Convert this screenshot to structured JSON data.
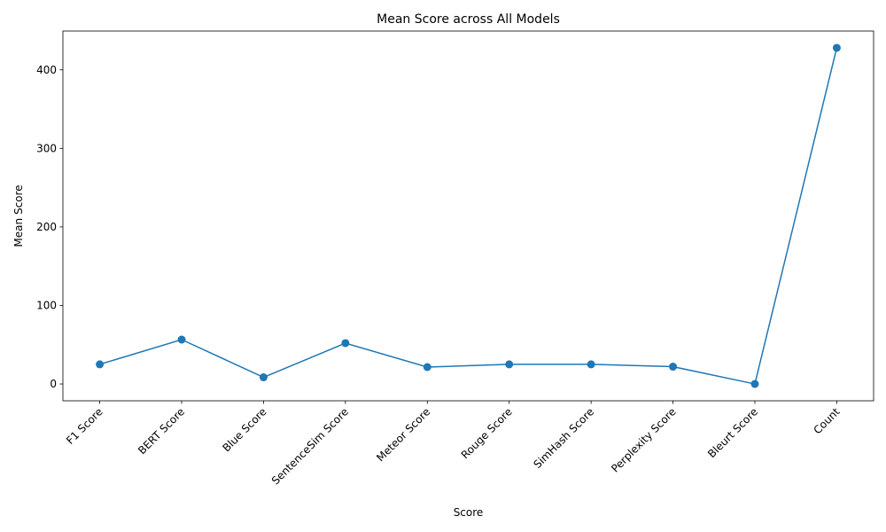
{
  "chart_data": {
    "type": "line",
    "title": "Mean Score across All Models",
    "xlabel": "Score",
    "ylabel": "Mean Score",
    "categories": [
      "F1 Score",
      "BERT Score",
      "Blue Score",
      "SentenceSim Score",
      "Meteor Score",
      "Rouge Score",
      "SimHash Score",
      "Perplexity Score",
      "Bleurt Score",
      "Count"
    ],
    "series": [
      {
        "values": [
          25,
          56.5,
          8.5,
          52,
          21.5,
          25,
          25,
          22,
          0,
          428
        ]
      }
    ],
    "ylim": [
      -21.4,
      449.4
    ],
    "yticks": [
      0,
      100,
      200,
      300,
      400
    ],
    "grid": false,
    "legend": "none",
    "color": "#1f77b4",
    "marker": "circle"
  }
}
